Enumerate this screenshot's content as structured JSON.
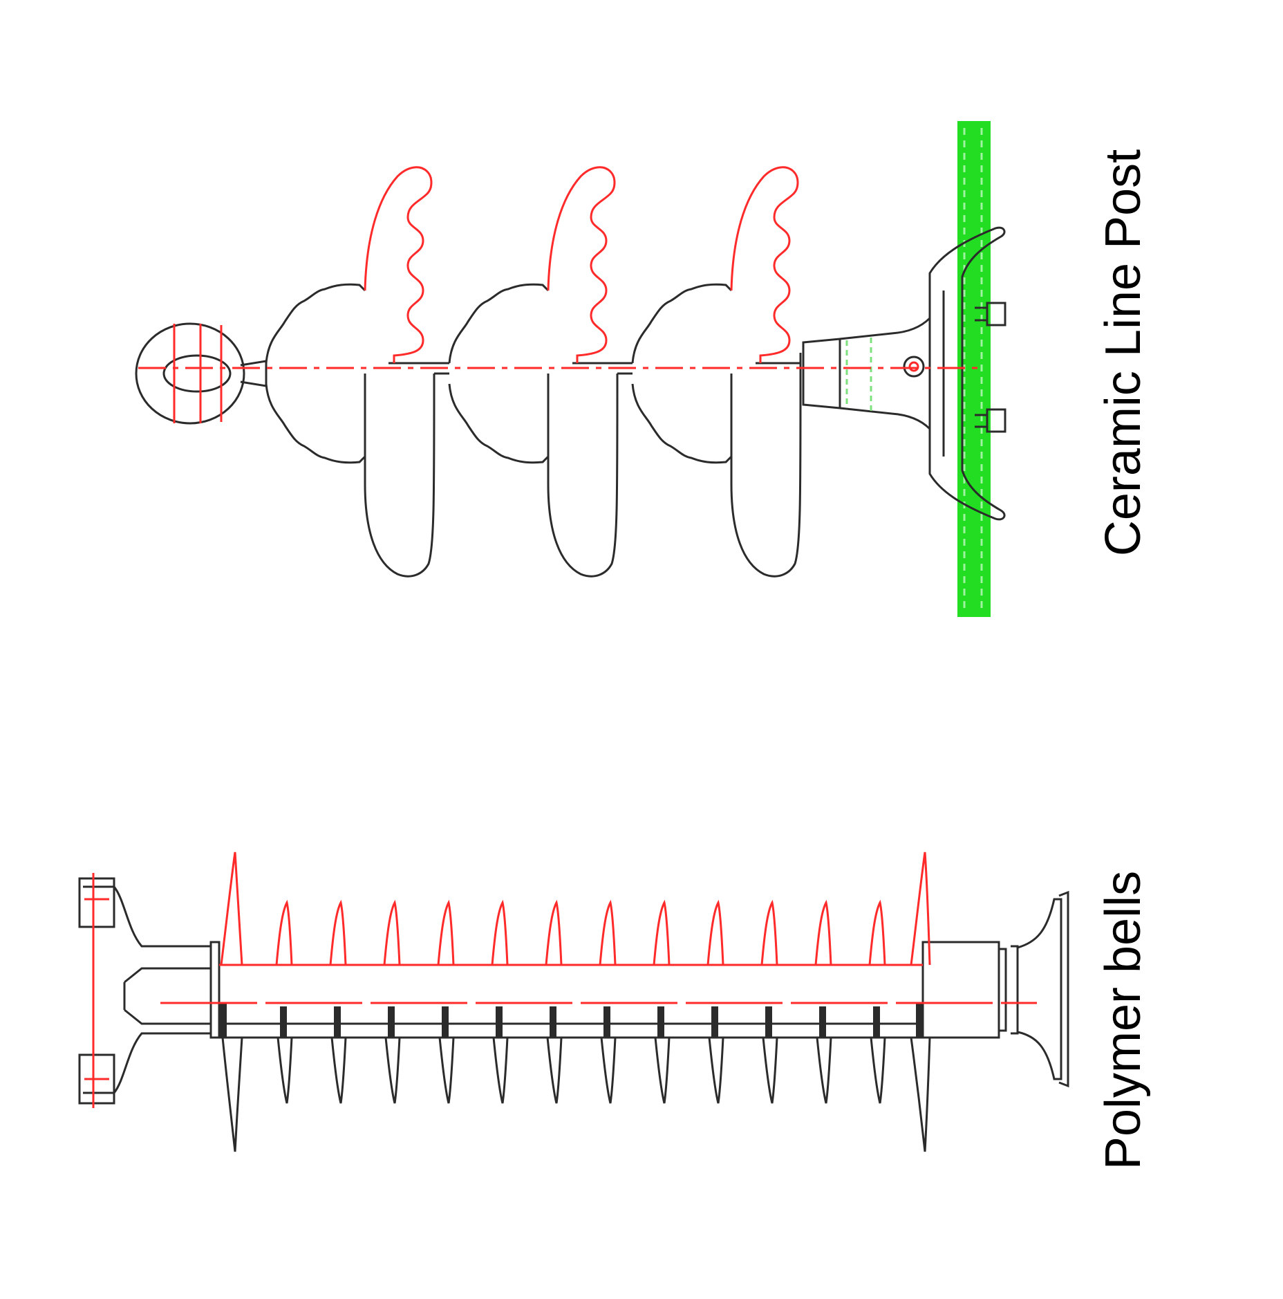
{
  "labels": {
    "ceramic": "Ceramic Line Post",
    "polymer": "Polymer bells"
  },
  "colors": {
    "outline": "#2b2b2b",
    "highlight": "#ff2a2a",
    "mount": "#22dd22"
  },
  "insulators": [
    {
      "name": "ceramic-line-post",
      "shed_count": 3
    },
    {
      "name": "polymer-bells",
      "shed_count": 14
    }
  ]
}
